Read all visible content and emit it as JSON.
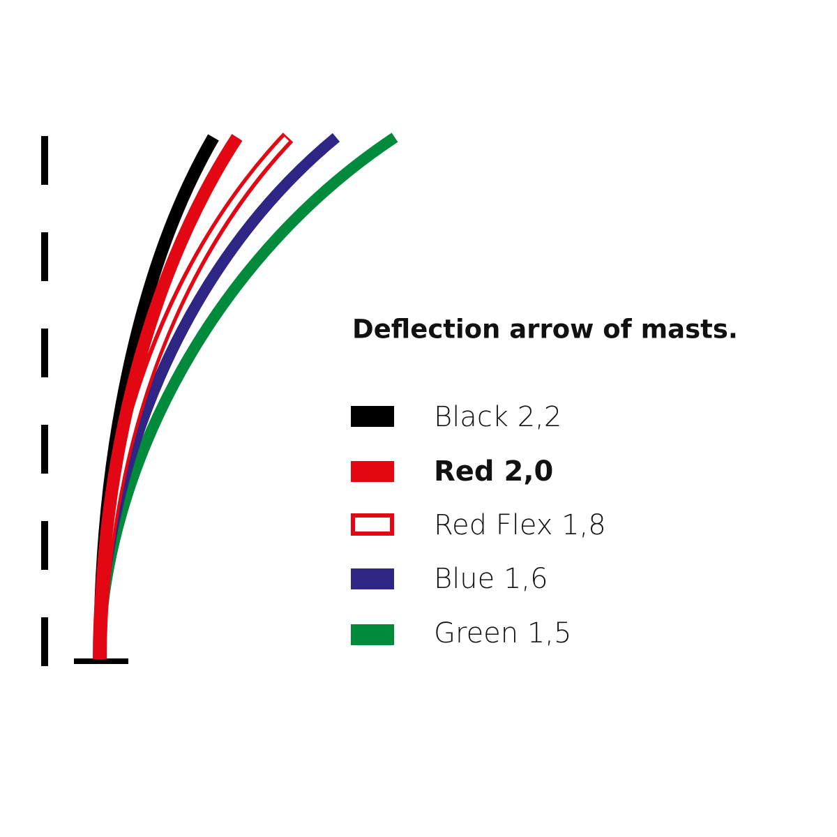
{
  "title": "Deflection arrow of masts.",
  "legend": {
    "items": [
      {
        "label": "Black 2,2"
      },
      {
        "label": "Red 2,0"
      },
      {
        "label": "Red Flex 1,8"
      },
      {
        "label": "Blue 1,6"
      },
      {
        "label": "Green 1,5"
      }
    ]
  }
}
